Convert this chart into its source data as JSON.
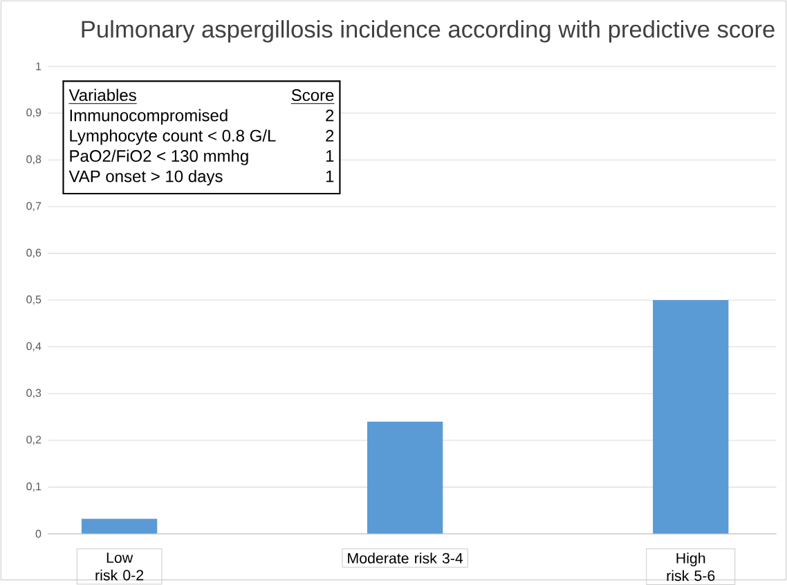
{
  "chart_data": {
    "type": "bar",
    "title": "Pulmonary aspergillosis incidence according with predictive score",
    "categories": [
      "Low risk 0-2",
      "Moderate risk 3-4",
      "High risk 5-6"
    ],
    "values": [
      0.032,
      0.24,
      0.5
    ],
    "color": "#5b9bd5",
    "ylim": [
      0,
      1
    ],
    "yticks": [
      {
        "value": 0,
        "label": "0"
      },
      {
        "value": 0.1,
        "label": "0,1"
      },
      {
        "value": 0.2,
        "label": "0,2"
      },
      {
        "value": 0.3,
        "label": "0,3"
      },
      {
        "value": 0.4,
        "label": "0,4"
      },
      {
        "value": 0.5,
        "label": "0,5"
      },
      {
        "value": 0.6,
        "label": "0,6"
      },
      {
        "value": 0.7,
        "label": "0,7"
      },
      {
        "value": 0.8,
        "label": "0,8"
      },
      {
        "value": 0.9,
        "label": "0,9"
      },
      {
        "value": 1,
        "label": "1"
      }
    ],
    "grid": "y",
    "annotations": [
      "Variables",
      "Score",
      "Immunocompromised",
      "2",
      "Lymphocyte count < 0.8 G/L",
      "2",
      "PaO2/FiO2 < 130 mmhg",
      "1",
      "VAP onset > 10 days",
      "1"
    ]
  }
}
